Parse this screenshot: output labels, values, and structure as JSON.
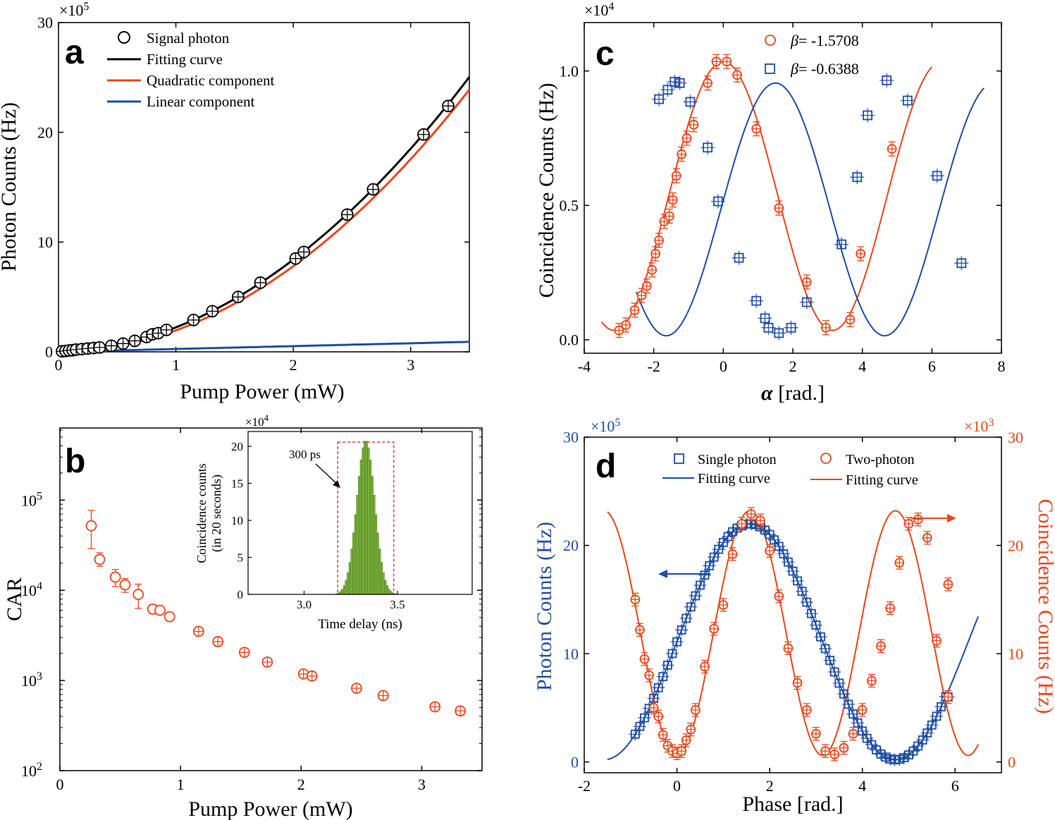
{
  "colors": {
    "black": "#000000",
    "orange": "#e8481c",
    "blue": "#1f4ea3",
    "green": "#7bb33a",
    "red": "#e04040"
  },
  "chart_data": [
    {
      "panel": "a",
      "type": "line",
      "label": "a",
      "xlabel": "Pump Power (mW)",
      "ylabel": "Photon Counts (Hz)",
      "multiplier": "×10",
      "multiplier_exp": "5",
      "xlim": [
        0,
        3.5
      ],
      "ylim": [
        0,
        30
      ],
      "xticks": [
        "0",
        "1",
        "2",
        "3"
      ],
      "yticks": [
        "0",
        "10",
        "20",
        "30"
      ],
      "xtick_values": [
        0,
        1,
        2,
        3
      ],
      "ytick_values": [
        0,
        10,
        20,
        30
      ],
      "legend": [
        "Signal photon",
        "Fitting curve",
        "Quadratic component",
        "Linear component"
      ],
      "signal_photon": {
        "x": [
          0.03,
          0.06,
          0.09,
          0.12,
          0.15,
          0.2,
          0.25,
          0.3,
          0.35,
          0.45,
          0.55,
          0.65,
          0.75,
          0.8,
          0.85,
          0.92,
          1.15,
          1.31,
          1.53,
          1.72,
          2.02,
          2.09,
          2.46,
          2.68,
          3.11,
          3.32
        ],
        "y": [
          0.05,
          0.08,
          0.12,
          0.15,
          0.2,
          0.25,
          0.3,
          0.35,
          0.4,
          0.55,
          0.75,
          1.0,
          1.35,
          1.6,
          1.7,
          2.0,
          2.9,
          3.7,
          5.0,
          6.3,
          8.5,
          9.1,
          12.5,
          14.8,
          19.8,
          22.4
        ]
      },
      "fit": {
        "a": 1.97,
        "b": 0.26
      },
      "quadratic": {
        "a": 1.95
      },
      "linear": {
        "b": 0.26
      }
    },
    {
      "panel": "b",
      "type": "scatter",
      "label": "b",
      "xlabel": "Pump Power (mW)",
      "ylabel": "CAR",
      "xlim": [
        0,
        3.5
      ],
      "ylim_log": [
        2,
        5.8
      ],
      "xticks": [
        "0",
        "1",
        "2",
        "3"
      ],
      "xtick_values": [
        0,
        1,
        2,
        3
      ],
      "yticks_base": "10",
      "yticks_exp": [
        "2",
        "3",
        "4",
        "5"
      ],
      "ytick_values_log": [
        2,
        3,
        4,
        5
      ],
      "car": {
        "x": [
          0.26,
          0.33,
          0.46,
          0.54,
          0.65,
          0.77,
          0.83,
          0.91,
          1.15,
          1.31,
          1.53,
          1.72,
          2.02,
          2.09,
          2.46,
          2.68,
          3.11,
          3.32
        ],
        "y": [
          52000,
          22000,
          14000,
          11500,
          9000,
          6200,
          6000,
          5100,
          3500,
          2700,
          2050,
          1600,
          1180,
          1120,
          820,
          680,
          510,
          460
        ],
        "err_lo": [
          23000,
          3500,
          3000,
          2000,
          2700,
          700,
          600,
          500,
          300,
          300,
          150,
          120,
          100,
          90,
          60,
          50,
          40,
          30
        ],
        "err_hi": [
          25000,
          4000,
          3000,
          2000,
          2700,
          700,
          600,
          500,
          300,
          300,
          150,
          120,
          100,
          90,
          60,
          50,
          40,
          30
        ]
      },
      "inset": {
        "type": "bar",
        "xlabel": "Time delay (ns)",
        "ylabel_line1": "Coincidence counts",
        "ylabel_line2": "(in 20 seconds)",
        "multiplier": "×10",
        "multiplier_exp": "4",
        "annotation": "300 ps",
        "xlim": [
          2.7,
          3.9
        ],
        "ylim": [
          0,
          22
        ],
        "xticks": [
          "3.0",
          "3.5"
        ],
        "xtick_values": [
          3.0,
          3.5
        ],
        "yticks": [
          "0",
          "5",
          "10",
          "15",
          "20"
        ],
        "ytick_values": [
          0,
          5,
          10,
          15,
          20
        ],
        "window": [
          3.18,
          3.48
        ],
        "peak_center": 3.33,
        "peak_sigma": 0.048,
        "peak_height": 20.8
      }
    },
    {
      "panel": "c",
      "type": "scatter",
      "label": "c",
      "xlabel_symbol": "α",
      "xlabel": " [rad.]",
      "ylabel": "Coincidence Counts (Hz)",
      "multiplier": "×10",
      "multiplier_exp": "4",
      "xlim": [
        -4,
        8
      ],
      "ylim": [
        -0.05,
        1.18
      ],
      "xticks": [
        "-4",
        "-2",
        "0",
        "2",
        "4",
        "6",
        "8"
      ],
      "xtick_values": [
        -4,
        -2,
        0,
        2,
        4,
        6,
        8
      ],
      "yticks": [
        "0.0",
        "0.5",
        "1.0"
      ],
      "ytick_values": [
        0,
        0.5,
        1.0
      ],
      "series": [
        {
          "name": "β = -1.5708",
          "symbol": "β",
          "text": "= -1.5708",
          "marker": "circle",
          "color_key": "orange",
          "x": [
            -3.0,
            -2.8,
            -2.55,
            -2.35,
            -2.2,
            -2.05,
            -1.95,
            -1.85,
            -1.7,
            -1.55,
            -1.45,
            -1.35,
            -1.2,
            -1.05,
            -0.85,
            -0.45,
            -0.2,
            0.1,
            0.4,
            0.95,
            1.6,
            2.4,
            2.95,
            3.65,
            3.95,
            4.85
          ],
          "y": [
            0.035,
            0.055,
            0.11,
            0.165,
            0.2,
            0.26,
            0.32,
            0.37,
            0.44,
            0.46,
            0.52,
            0.61,
            0.69,
            0.75,
            0.8,
            0.955,
            1.035,
            1.035,
            0.985,
            0.785,
            0.49,
            0.215,
            0.045,
            0.075,
            0.32,
            0.71
          ],
          "fit": {
            "A": 0.5,
            "C": 0.535,
            "phi0": 0.0,
            "x0": -3.5,
            "x1": 6.0
          }
        },
        {
          "name": "β = -0.6388",
          "symbol": "β",
          "text": "= -0.6388",
          "marker": "square",
          "color_key": "blue",
          "x": [
            -1.85,
            -1.6,
            -1.4,
            -1.25,
            -0.95,
            -0.45,
            -0.15,
            0.45,
            0.95,
            1.2,
            1.3,
            1.6,
            1.95,
            2.4,
            3.4,
            3.85,
            4.15,
            4.7,
            5.3,
            6.15,
            6.85
          ],
          "y": [
            0.895,
            0.93,
            0.96,
            0.955,
            0.885,
            0.715,
            0.515,
            0.305,
            0.145,
            0.08,
            0.045,
            0.025,
            0.045,
            0.14,
            0.355,
            0.605,
            0.835,
            0.965,
            0.89,
            0.61,
            0.285
          ],
          "fit": {
            "A": 0.47,
            "C": 0.485,
            "phi0": -1.5,
            "x0": -2.5,
            "x1": 7.5
          }
        }
      ]
    },
    {
      "panel": "d",
      "type": "scatter",
      "label": "d",
      "xlabel": "Phase [rad.]",
      "ylabel_left": "Photon Counts (Hz)",
      "ylabel_right": "Coincidence Counts (Hz)",
      "multiplier_left": "×10",
      "multiplier_left_exp": "5",
      "multiplier_right": "×10",
      "multiplier_right_exp": "3",
      "xlim": [
        -2,
        7
      ],
      "ylim": [
        -1,
        30
      ],
      "xticks": [
        "-2",
        "0",
        "2",
        "4",
        "6"
      ],
      "xtick_values": [
        -2,
        0,
        2,
        4,
        6
      ],
      "yticks_left": [
        "0",
        "10",
        "20",
        "30"
      ],
      "yticks_right": [
        "0",
        "10",
        "20",
        "30"
      ],
      "ytick_values": [
        0,
        10,
        20,
        30
      ],
      "legend": [
        "Single photon",
        "Fitting curve",
        "Two-photon",
        "Fitting curve"
      ],
      "single_photon": {
        "marker": "square",
        "color_key": "blue",
        "fit": {
          "A": 10.9,
          "C": 11.1,
          "phi0": -1.5708,
          "x0": -1.5,
          "x1": 6.5
        },
        "x0": -0.9,
        "dx": 0.1,
        "n": 68,
        "outliers": [
          {
            "x": 5.85,
            "y": 6.0
          }
        ]
      },
      "two_photon": {
        "marker": "circle",
        "color_key": "orange",
        "fit": {
          "A": 11.3,
          "C": 11.9,
          "phi0": 0.0,
          "x0": -1.5,
          "x1": 6.5
        },
        "x": [
          -0.9,
          -0.8,
          -0.7,
          -0.6,
          -0.5,
          -0.4,
          -0.3,
          -0.2,
          -0.1,
          0.0,
          0.1,
          0.2,
          0.3,
          0.4,
          0.6,
          0.8,
          1.0,
          1.2,
          1.4,
          1.6,
          1.8,
          2.0,
          2.2,
          2.4,
          2.6,
          2.8,
          3.0,
          3.2,
          3.4,
          3.6,
          3.8,
          4.0,
          4.2,
          4.4,
          4.6,
          4.8,
          5.0,
          5.2,
          5.4,
          5.85
        ],
        "y": [
          15.0,
          12.2,
          9.5,
          8.0,
          5.0,
          4.2,
          2.5,
          1.5,
          1.0,
          0.8,
          1.0,
          2.0,
          3.0,
          4.8,
          8.8,
          12.3,
          14.5,
          19.2,
          22.0,
          22.9,
          22.3,
          19.5,
          15.3,
          10.5,
          7.3,
          4.8,
          2.6,
          1.0,
          0.7,
          1.3,
          2.6,
          4.8,
          7.5,
          10.7,
          14.2,
          18.4,
          22.0,
          22.4,
          20.7,
          16.4
        ]
      },
      "two_photon_tail": {
        "x": [
          5.6,
          5.85
        ],
        "y": [
          11.2,
          6.0
        ]
      }
    }
  ]
}
